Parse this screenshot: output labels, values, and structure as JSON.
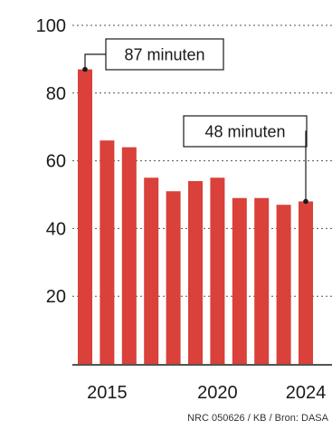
{
  "chart_data": {
    "type": "bar",
    "x": [
      2014,
      2015,
      2016,
      2017,
      2018,
      2019,
      2020,
      2021,
      2022,
      2023,
      2024
    ],
    "values": [
      87,
      66,
      64,
      55,
      51,
      54,
      55,
      49,
      49,
      47,
      48
    ],
    "ylim": [
      0,
      100
    ],
    "yticks": [
      20,
      40,
      60,
      80,
      100
    ],
    "xticks": [
      2015,
      2020,
      2024
    ],
    "grid": "dotted horizontal",
    "bar_color": "#d9413a",
    "annotations": [
      {
        "text": "87 minuten",
        "x": 2014,
        "y": 87
      },
      {
        "text": "48 minuten",
        "x": 2024,
        "y": 48
      }
    ]
  },
  "source": "NRC 050626 / KB / Bron: DASA"
}
